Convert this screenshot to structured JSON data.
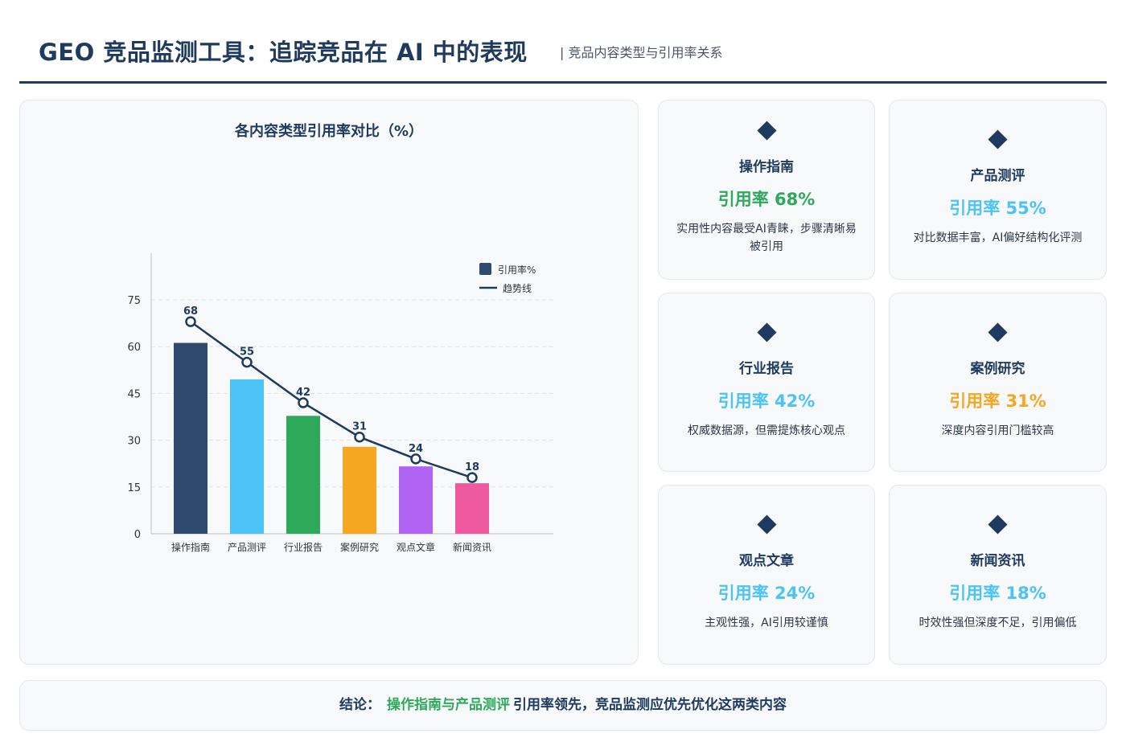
{
  "header": {
    "title": "GEO 竞品监测工具：追踪竞品在 AI 中的表现",
    "subtitle": "| 竞品内容类型与引用率关系"
  },
  "chart_data": {
    "type": "bar",
    "title": "各内容类型引用率对比（%）",
    "categories": [
      "操作指南",
      "产品测评",
      "行业报告",
      "案例研究",
      "观点文章",
      "新闻资讯"
    ],
    "series": [
      {
        "name": "引用率%",
        "type": "bar",
        "values": [
          68,
          55,
          42,
          31,
          24,
          18
        ]
      },
      {
        "name": "趋势线",
        "type": "line",
        "values": [
          68,
          55,
          42,
          31,
          24,
          18
        ]
      }
    ],
    "bar_colors": [
      "#2f4a6d",
      "#4cc3f7",
      "#2ea95a",
      "#f5a623",
      "#b062f2",
      "#ef5a9e"
    ],
    "line_color": "#1e3a5f",
    "data_labels": [
      "68",
      "55",
      "42",
      "31",
      "24",
      "18"
    ],
    "y_ticks": [
      0,
      15,
      30,
      45,
      60,
      75
    ],
    "ylim": [
      0,
      90
    ],
    "grid": "horizontal dashed",
    "legend_position": "top-right"
  },
  "cards": [
    {
      "name": "操作指南",
      "rate": "引用率 68%",
      "rate_color": "#2ea95a",
      "desc": "实用性内容最受AI青睐，步骤清晰易被引用"
    },
    {
      "name": "产品测评",
      "rate": "引用率 55%",
      "rate_color": "#4cc3f7",
      "desc": "对比数据丰富，AI偏好结构化评测"
    },
    {
      "name": "行业报告",
      "rate": "引用率 42%",
      "rate_color": "#4cc3f7",
      "desc": "权威数据源，但需提炼核心观点"
    },
    {
      "name": "案例研究",
      "rate": "引用率 31%",
      "rate_color": "#f5a623",
      "desc": "深度内容引用门槛较高"
    },
    {
      "name": "观点文章",
      "rate": "引用率 24%",
      "rate_color": "#4cc3f7",
      "desc": "主观性强，AI引用较谨慎"
    },
    {
      "name": "新闻资讯",
      "rate": "引用率 18%",
      "rate_color": "#4cc3f7",
      "desc": "时效性强但深度不足，引用偏低"
    }
  ],
  "conclusion": {
    "prefix": "结论：",
    "highlight": "操作指南与产品测评",
    "rest": "引用率领先，竞品监测应优先优化这两类内容"
  }
}
